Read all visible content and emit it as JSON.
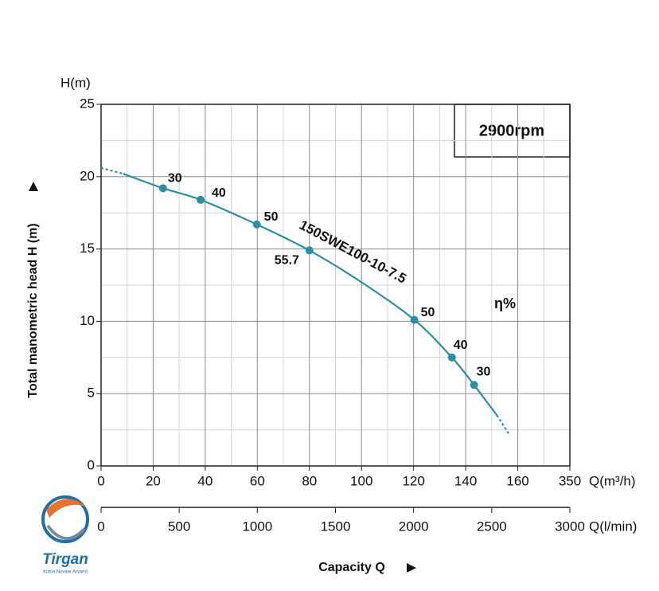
{
  "chart_data": {
    "type": "line",
    "y_unit": "H(m)",
    "y_label": "Total manometric head H (m)",
    "x_unit": "Q(m³/h)",
    "x2_unit": "Q(l/min)",
    "x_label": "Capacity Q",
    "speed": "2900rpm",
    "efficiency_label": "η%",
    "ylim": [
      0,
      25
    ],
    "yticks": [
      0,
      5,
      10,
      15,
      20,
      25
    ],
    "xlim": [
      0,
      350
    ],
    "xticks": [
      0,
      20,
      40,
      60,
      80,
      100,
      120,
      140,
      160,
      350
    ],
    "x2lim": [
      0,
      3000
    ],
    "x2ticks": [
      0,
      500,
      1000,
      1500,
      2000,
      2500,
      3000
    ],
    "grid": true,
    "minor_grid": true,
    "dashed_ends": true,
    "series": [
      {
        "name": "150SWE100-10-7.5",
        "color": "#2a8fa3",
        "x": [
          0,
          8.5,
          23.8,
          38.2,
          59.8,
          80,
          100,
          120.3,
          134.7,
          143.2,
          152,
          157
        ],
        "values": [
          20.6,
          20.2,
          19.2,
          18.4,
          16.7,
          14.9,
          12.7,
          10.1,
          7.5,
          5.6,
          3.5,
          2.1
        ]
      }
    ],
    "efficiency_points": {
      "x": [
        23.8,
        38.2,
        59.8,
        80,
        120.3,
        134.7,
        143.2
      ],
      "values": [
        19.2,
        18.4,
        16.7,
        14.9,
        10.1,
        7.5,
        5.6
      ],
      "labels": [
        30,
        40,
        50,
        55.7,
        50,
        40,
        30
      ]
    },
    "logo": {
      "name": "Tirgan",
      "tagline": "Kimia Novine Arvand"
    }
  }
}
